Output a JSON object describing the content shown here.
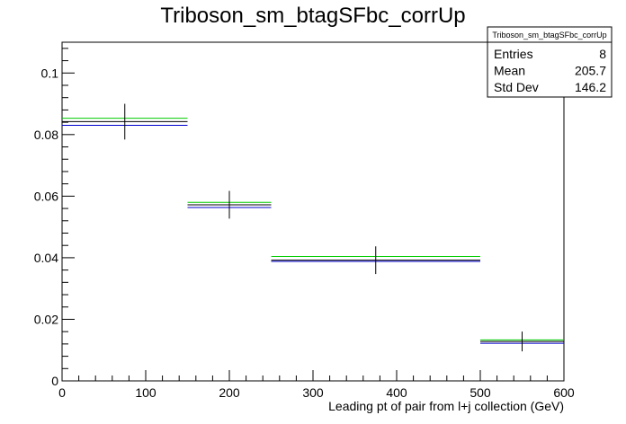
{
  "chart_data": {
    "type": "histogram",
    "title": "Triboson_sm_btagSFbc_corrUp",
    "xlabel": "Leading pt of pair from l+j collection (GeV)",
    "ylabel": "",
    "xlim": [
      0,
      600
    ],
    "ylim": [
      0,
      0.11
    ],
    "x_ticks": [
      "0",
      "100",
      "200",
      "300",
      "400",
      "500",
      "600"
    ],
    "y_ticks": [
      "0",
      "0.02",
      "0.04",
      "0.06",
      "0.08",
      "0.1"
    ],
    "x_tick_values": [
      0,
      100,
      200,
      300,
      400,
      500,
      600
    ],
    "y_tick_values": [
      0,
      0.02,
      0.04,
      0.06,
      0.08,
      0.1
    ],
    "bins": [
      [
        0,
        150
      ],
      [
        150,
        250
      ],
      [
        250,
        500
      ],
      [
        500,
        600
      ]
    ],
    "series": [
      {
        "color": "#000000",
        "values": [
          0.0842,
          0.0572,
          0.0392,
          0.0128
        ],
        "errors": [
          0.0058,
          0.0045,
          0.0045,
          0.0032
        ]
      },
      {
        "color": "#00cc00",
        "values": [
          0.0853,
          0.058,
          0.0404,
          0.0133
        ]
      },
      {
        "color": "#0000cc",
        "values": [
          0.083,
          0.0563,
          0.0388,
          0.0122
        ]
      }
    ],
    "stats": {
      "name": "Triboson_sm_btagSFbc_corrUp",
      "rows": [
        {
          "label": "Entries",
          "value": "8"
        },
        {
          "label": "Mean",
          "value": "205.7"
        },
        {
          "label": "Std Dev",
          "value": "146.2"
        }
      ]
    },
    "grid": false,
    "legend": "none"
  }
}
